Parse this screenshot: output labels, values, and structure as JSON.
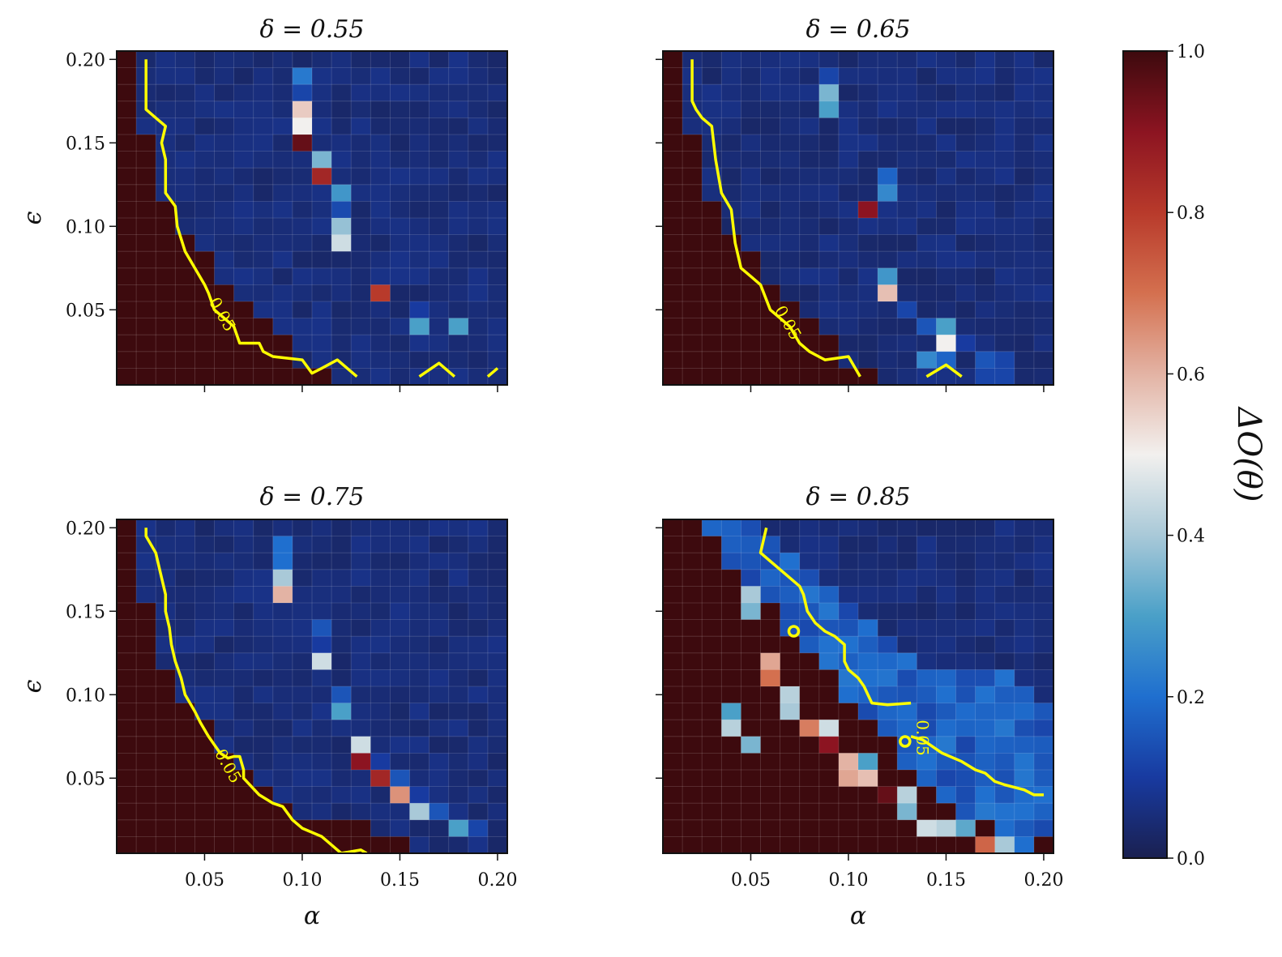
{
  "chart_data": {
    "type": "heatmap",
    "colorbar": {
      "label": "ΔO(θ)",
      "range": [
        0.0,
        1.0
      ],
      "ticks": [
        "0.0",
        "0.2",
        "0.4",
        "0.6",
        "0.8",
        "1.0"
      ],
      "ticks_values": [
        0.0,
        0.2,
        0.4,
        0.6,
        0.8,
        1.0
      ],
      "colormap_stops": [
        "#1a2050",
        "#183aa0",
        "#1f6fcf",
        "#4aa0c8",
        "#a9c9d8",
        "#f2f0ee",
        "#e3b3a4",
        "#d4704f",
        "#b83a2b",
        "#8c1421",
        "#3d0a0e"
      ]
    },
    "contour_level_label": "0.05",
    "contour_color": "#ffff00",
    "x_label": "α",
    "y_label": "ϵ",
    "x_ticks": [
      "0.05",
      "0.10",
      "0.15",
      "0.20"
    ],
    "x_tick_values": [
      0.05,
      0.1,
      0.15,
      0.2
    ],
    "y_ticks": [
      "0.05",
      "0.10",
      "0.15",
      "0.20"
    ],
    "y_tick_values": [
      0.05,
      0.1,
      0.15,
      0.2
    ],
    "xlim": [
      0.005,
      0.205
    ],
    "ylim": [
      0.005,
      0.205
    ],
    "grid": true,
    "panels": [
      {
        "title": "δ = 0.55",
        "boundary_row": [
          2,
          3,
          3,
          3,
          4,
          4,
          5,
          5,
          6,
          8,
          9,
          10,
          13,
          15,
          17,
          20
        ],
        "special_cells": [
          [
            1,
            9,
            0.22
          ],
          [
            2,
            9,
            0.12
          ],
          [
            3,
            9,
            0.56
          ],
          [
            4,
            9,
            0.5
          ],
          [
            5,
            9,
            0.95
          ],
          [
            6,
            10,
            0.35
          ],
          [
            7,
            10,
            0.85
          ],
          [
            8,
            11,
            0.28
          ],
          [
            9,
            11,
            0.13
          ],
          [
            10,
            11,
            0.38
          ],
          [
            11,
            11,
            0.45
          ],
          [
            12,
            14,
            0.07
          ],
          [
            13,
            14,
            0.07
          ],
          [
            14,
            13,
            0.8
          ],
          [
            15,
            15,
            0.1
          ],
          [
            16,
            15,
            0.3
          ],
          [
            16,
            17,
            0.3
          ],
          [
            16,
            25,
            0.3
          ],
          [
            16,
            26,
            0.1
          ]
        ],
        "contours": [
          [
            [
              0.02,
              0.2
            ],
            [
              0.02,
              0.17
            ],
            [
              0.025,
              0.165
            ],
            [
              0.03,
              0.16
            ],
            [
              0.028,
              0.15
            ],
            [
              0.03,
              0.14
            ],
            [
              0.03,
              0.12
            ],
            [
              0.035,
              0.112
            ],
            [
              0.036,
              0.1
            ],
            [
              0.04,
              0.085
            ],
            [
              0.045,
              0.075
            ],
            [
              0.05,
              0.065
            ],
            [
              0.052,
              0.06
            ],
            [
              0.055,
              0.05
            ],
            [
              0.06,
              0.045
            ],
            [
              0.065,
              0.04
            ],
            [
              0.068,
              0.03
            ],
            [
              0.078,
              0.03
            ],
            [
              0.08,
              0.025
            ],
            [
              0.085,
              0.022
            ],
            [
              0.1,
              0.02
            ],
            [
              0.105,
              0.012
            ],
            [
              0.11,
              0.015
            ],
            [
              0.118,
              0.02
            ],
            [
              0.128,
              0.01
            ]
          ],
          [
            [
              0.16,
              0.01
            ],
            [
              0.17,
              0.018
            ],
            [
              0.178,
              0.01
            ]
          ],
          [
            [
              0.195,
              0.01
            ],
            [
              0.2,
              0.015
            ]
          ]
        ],
        "label_pos": [
          0.052,
          0.055
        ]
      },
      {
        "title": "δ = 0.65",
        "boundary_row": [
          2,
          3,
          3,
          3,
          4,
          4,
          5,
          5,
          6,
          7,
          8,
          9,
          10,
          11,
          11,
          12,
          15,
          18,
          20,
          20
        ],
        "special_cells": [
          [
            1,
            8,
            0.12
          ],
          [
            2,
            8,
            0.35
          ],
          [
            3,
            8,
            0.3
          ],
          [
            7,
            11,
            0.18
          ],
          [
            8,
            11,
            0.25
          ],
          [
            9,
            10,
            0.9
          ],
          [
            13,
            11,
            0.28
          ],
          [
            14,
            11,
            0.58
          ],
          [
            15,
            12,
            0.12
          ],
          [
            16,
            13,
            0.15
          ],
          [
            16,
            14,
            0.3
          ],
          [
            17,
            14,
            0.5
          ],
          [
            18,
            13,
            0.25
          ],
          [
            18,
            14,
            0.18
          ],
          [
            17,
            15,
            0.1
          ],
          [
            18,
            16,
            0.15
          ],
          [
            19,
            16,
            0.12
          ],
          [
            18,
            17,
            0.12
          ],
          [
            19,
            17,
            0.12
          ],
          [
            19,
            22,
            0.15
          ]
        ],
        "contours": [
          [
            [
              0.02,
              0.2
            ],
            [
              0.02,
              0.175
            ],
            [
              0.022,
              0.17
            ],
            [
              0.025,
              0.165
            ],
            [
              0.03,
              0.16
            ],
            [
              0.032,
              0.14
            ],
            [
              0.035,
              0.12
            ],
            [
              0.04,
              0.11
            ],
            [
              0.042,
              0.09
            ],
            [
              0.045,
              0.075
            ],
            [
              0.05,
              0.07
            ],
            [
              0.055,
              0.065
            ],
            [
              0.06,
              0.05
            ],
            [
              0.065,
              0.045
            ],
            [
              0.07,
              0.04
            ],
            [
              0.075,
              0.03
            ],
            [
              0.08,
              0.025
            ],
            [
              0.088,
              0.02
            ],
            [
              0.1,
              0.022
            ],
            [
              0.106,
              0.01
            ]
          ],
          [
            [
              0.14,
              0.01
            ],
            [
              0.15,
              0.017
            ],
            [
              0.158,
              0.01
            ]
          ]
        ],
        "label_pos": [
          0.062,
          0.05
        ]
      },
      {
        "title": "δ = 0.75",
        "boundary_row": [
          2,
          3,
          3,
          3,
          4,
          4,
          5,
          5,
          6,
          7,
          8,
          9,
          10,
          10,
          11,
          12,
          14,
          16,
          18,
          20
        ],
        "special_cells": [
          [
            1,
            8,
            0.2
          ],
          [
            2,
            8,
            0.2
          ],
          [
            3,
            8,
            0.4
          ],
          [
            4,
            8,
            0.6
          ],
          [
            6,
            10,
            0.15
          ],
          [
            7,
            10,
            0.1
          ],
          [
            8,
            10,
            0.45
          ],
          [
            10,
            11,
            0.15
          ],
          [
            11,
            11,
            0.3
          ],
          [
            13,
            12,
            0.45
          ],
          [
            14,
            12,
            0.9
          ],
          [
            14,
            13,
            0.1
          ],
          [
            15,
            13,
            0.85
          ],
          [
            15,
            14,
            0.15
          ],
          [
            16,
            14,
            0.65
          ],
          [
            16,
            15,
            0.1
          ],
          [
            17,
            15,
            0.4
          ],
          [
            17,
            16,
            0.15
          ],
          [
            18,
            17,
            0.3
          ],
          [
            18,
            18,
            0.12
          ]
        ],
        "contours": [
          [
            [
              0.02,
              0.2
            ],
            [
              0.02,
              0.195
            ],
            [
              0.025,
              0.185
            ],
            [
              0.027,
              0.175
            ],
            [
              0.03,
              0.16
            ],
            [
              0.03,
              0.15
            ],
            [
              0.032,
              0.14
            ],
            [
              0.033,
              0.13
            ],
            [
              0.035,
              0.12
            ],
            [
              0.038,
              0.11
            ],
            [
              0.04,
              0.1
            ],
            [
              0.045,
              0.09
            ],
            [
              0.048,
              0.083
            ],
            [
              0.052,
              0.075
            ],
            [
              0.055,
              0.07
            ],
            [
              0.058,
              0.065
            ],
            [
              0.062,
              0.062
            ],
            [
              0.065,
              0.063
            ],
            [
              0.068,
              0.063
            ],
            [
              0.07,
              0.055
            ],
            [
              0.07,
              0.05
            ],
            [
              0.078,
              0.04
            ],
            [
              0.085,
              0.035
            ],
            [
              0.09,
              0.033
            ],
            [
              0.095,
              0.025
            ],
            [
              0.1,
              0.02
            ],
            [
              0.11,
              0.015
            ],
            [
              0.115,
              0.01
            ],
            [
              0.12,
              0.005
            ],
            [
              0.13,
              0.007
            ],
            [
              0.133,
              0.005
            ]
          ]
        ],
        "label_pos": [
          0.055,
          0.065
        ]
      },
      {
        "title": "δ = 0.85",
        "boundary_row": [
          2,
          3,
          4,
          5,
          6,
          7,
          8,
          9,
          10,
          11,
          12,
          13,
          14,
          14,
          15,
          17,
          18,
          20,
          20,
          20
        ],
        "blue_band": true,
        "special_cells": [
          [
            4,
            4,
            0.4
          ],
          [
            5,
            4,
            0.35
          ],
          [
            8,
            5,
            0.62
          ],
          [
            9,
            5,
            0.7
          ],
          [
            10,
            6,
            0.42
          ],
          [
            11,
            6,
            0.4
          ],
          [
            12,
            7,
            0.68
          ],
          [
            12,
            8,
            0.45
          ],
          [
            13,
            8,
            0.9
          ],
          [
            14,
            9,
            0.6
          ],
          [
            15,
            9,
            0.62
          ],
          [
            14,
            10,
            0.3
          ],
          [
            15,
            10,
            0.58
          ],
          [
            16,
            11,
            0.95
          ],
          [
            16,
            12,
            0.42
          ],
          [
            17,
            12,
            0.35
          ],
          [
            18,
            13,
            0.45
          ],
          [
            18,
            14,
            0.42
          ],
          [
            18,
            15,
            0.32
          ],
          [
            19,
            16,
            0.72
          ],
          [
            19,
            17,
            0.4
          ],
          [
            19,
            18,
            0.2
          ],
          [
            11,
            3,
            0.3
          ],
          [
            12,
            3,
            0.42
          ],
          [
            13,
            4,
            0.35
          ]
        ],
        "contours": [
          [
            [
              0.058,
              0.2
            ],
            [
              0.055,
              0.185
            ],
            [
              0.06,
              0.18
            ],
            [
              0.065,
              0.175
            ],
            [
              0.07,
              0.17
            ],
            [
              0.075,
              0.165
            ],
            [
              0.077,
              0.16
            ],
            [
              0.079,
              0.15
            ],
            [
              0.083,
              0.143
            ],
            [
              0.088,
              0.138
            ],
            [
              0.093,
              0.135
            ],
            [
              0.098,
              0.13
            ],
            [
              0.098,
              0.12
            ],
            [
              0.1,
              0.115
            ],
            [
              0.105,
              0.11
            ],
            [
              0.108,
              0.105
            ],
            [
              0.11,
              0.1
            ],
            [
              0.112,
              0.095
            ],
            [
              0.12,
              0.094
            ],
            [
              0.132,
              0.095
            ]
          ],
          [
            [
              0.132,
              0.075
            ],
            [
              0.138,
              0.073
            ],
            [
              0.148,
              0.065
            ],
            [
              0.158,
              0.06
            ],
            [
              0.165,
              0.055
            ],
            [
              0.17,
              0.053
            ],
            [
              0.175,
              0.048
            ],
            [
              0.18,
              0.046
            ],
            [
              0.19,
              0.043
            ],
            [
              0.195,
              0.04
            ],
            [
              0.2,
              0.04
            ]
          ]
        ],
        "loops": [
          [
            0.072,
            0.138
          ],
          [
            0.129,
            0.072
          ]
        ],
        "label_pos": [
          0.135,
          0.085
        ]
      }
    ]
  }
}
